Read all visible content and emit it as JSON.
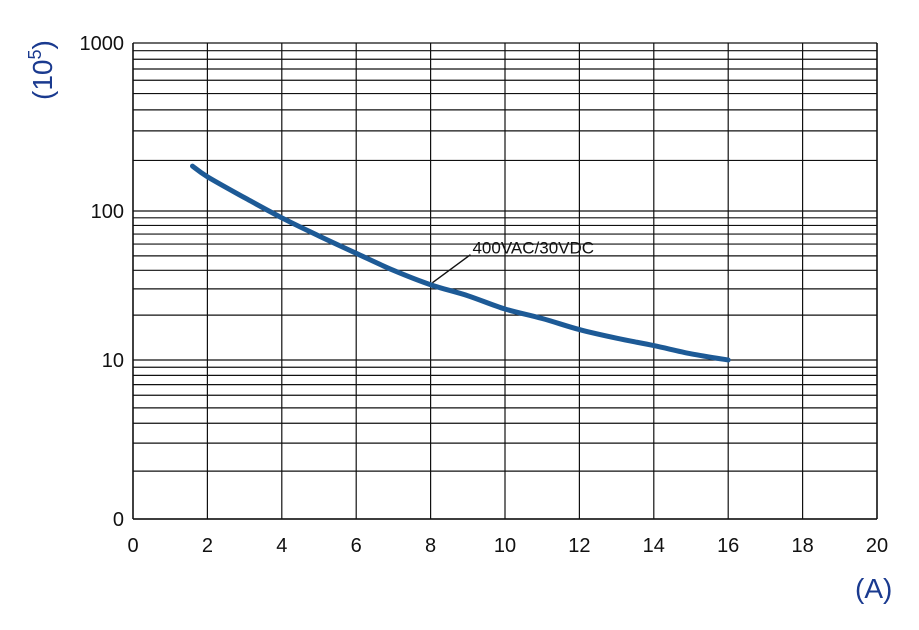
{
  "chart_data": {
    "type": "line",
    "title": "",
    "xlabel": "(A)",
    "ylabel_base": "(10",
    "ylabel_exp": "5",
    "ylabel_close": ")",
    "x_ticks": [
      "0",
      "2",
      "4",
      "6",
      "8",
      "10",
      "12",
      "14",
      "16",
      "18",
      "20"
    ],
    "y_ticks": [
      "0",
      "10",
      "100",
      "1000"
    ],
    "xlim": [
      0,
      20
    ],
    "y_scale": "log",
    "grid": true,
    "colors": {
      "line": "#1d5a96",
      "unit_label": "#1a3a8f",
      "grid": "#111111"
    },
    "series": [
      {
        "annotation": "400VAC/30VDC",
        "x": [
          1.6,
          2,
          3,
          4,
          5,
          6,
          7,
          8,
          9,
          10,
          11,
          12,
          13,
          14,
          15,
          16
        ],
        "y": [
          185,
          160,
          120,
          90,
          68,
          52,
          40,
          32,
          27,
          22,
          19,
          16,
          14,
          12.5,
          11,
          10
        ]
      }
    ]
  }
}
